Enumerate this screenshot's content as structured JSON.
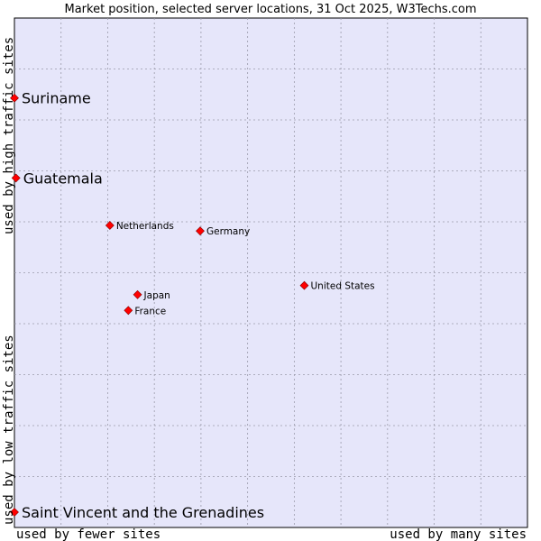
{
  "chart_data": {
    "type": "scatter",
    "title": "Market position, selected server locations, 31 Oct 2025, W3Techs.com",
    "xlabel_left": "used by fewer sites",
    "xlabel_right": "used by many sites",
    "ylabel_bottom": "used by low traffic sites",
    "ylabel_top": "used by high traffic sites",
    "xlim": [
      0,
      10
    ],
    "ylim": [
      0,
      10
    ],
    "grid": true,
    "marker_color": "#ff0000",
    "plot_background": "#e6e6fa",
    "points": [
      {
        "label": "Suriname",
        "x": 0.0,
        "y": 8.43,
        "emphasis": true
      },
      {
        "label": "Guatemala",
        "x": 0.03,
        "y": 6.86,
        "emphasis": true
      },
      {
        "label": "Netherlands",
        "x": 1.86,
        "y": 5.93,
        "emphasis": false
      },
      {
        "label": "Germany",
        "x": 3.62,
        "y": 5.82,
        "emphasis": false
      },
      {
        "label": "United States",
        "x": 5.65,
        "y": 4.75,
        "emphasis": false
      },
      {
        "label": "Japan",
        "x": 2.4,
        "y": 4.57,
        "emphasis": false
      },
      {
        "label": "France",
        "x": 2.22,
        "y": 4.26,
        "emphasis": false
      },
      {
        "label": "Saint Vincent and the Grenadines",
        "x": 0.0,
        "y": 0.3,
        "emphasis": true
      }
    ]
  }
}
